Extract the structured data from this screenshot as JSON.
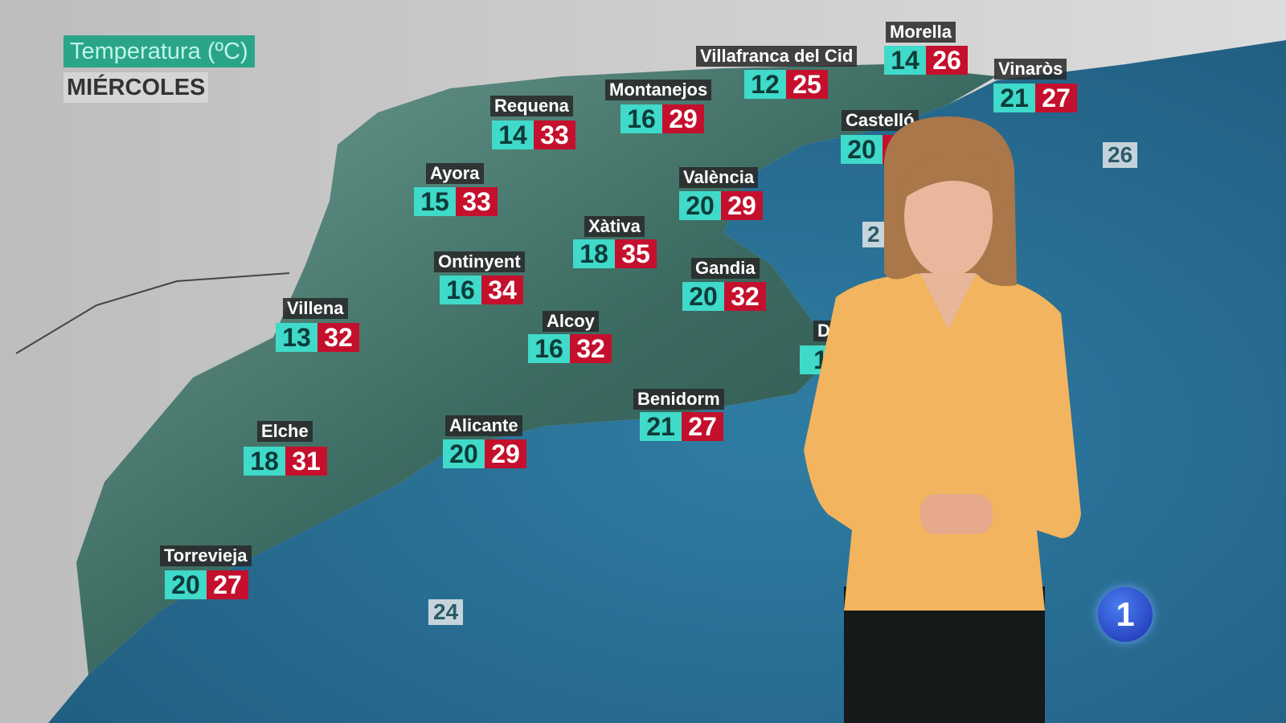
{
  "header": {
    "title": "Temperatura (ºC)",
    "day": "MIÉRCOLES"
  },
  "colors": {
    "min_box": "#3fdac9",
    "max_box": "#c4102d",
    "sea": "#2a6f94",
    "land": "#3c6b62",
    "title_bg": "#2aa58a"
  },
  "cities": [
    {
      "name": "Requena",
      "min": "14",
      "max": "33"
    },
    {
      "name": "Montanejos",
      "min": "16",
      "max": "29"
    },
    {
      "name": "Villafranca del Cid",
      "min": "12",
      "max": "25"
    },
    {
      "name": "Morella",
      "min": "14",
      "max": "26"
    },
    {
      "name": "Vinaròs",
      "min": "21",
      "max": "27"
    },
    {
      "name": "Castelló",
      "min": "20",
      "max": "2"
    },
    {
      "name": "Ayora",
      "min": "15",
      "max": "33"
    },
    {
      "name": "València",
      "min": "20",
      "max": "29"
    },
    {
      "name": "Xàtiva",
      "min": "18",
      "max": "35"
    },
    {
      "name": "Ontinyent",
      "min": "16",
      "max": "34"
    },
    {
      "name": "Gandia",
      "min": "20",
      "max": "32"
    },
    {
      "name": "Villena",
      "min": "13",
      "max": "32"
    },
    {
      "name": "Alcoy",
      "min": "16",
      "max": "32"
    },
    {
      "name": "Benidorm",
      "min": "21",
      "max": "27"
    },
    {
      "name": "Elche",
      "min": "18",
      "max": "31"
    },
    {
      "name": "Alicante",
      "min": "20",
      "max": "29"
    },
    {
      "name": "Torrevieja",
      "min": "20",
      "max": "27"
    },
    {
      "name": "D",
      "min": "1",
      "max": ""
    }
  ],
  "sea_temps": [
    "26",
    "24",
    "2"
  ],
  "logo": {
    "text": "1",
    "icon": "tve-la1-logo"
  }
}
